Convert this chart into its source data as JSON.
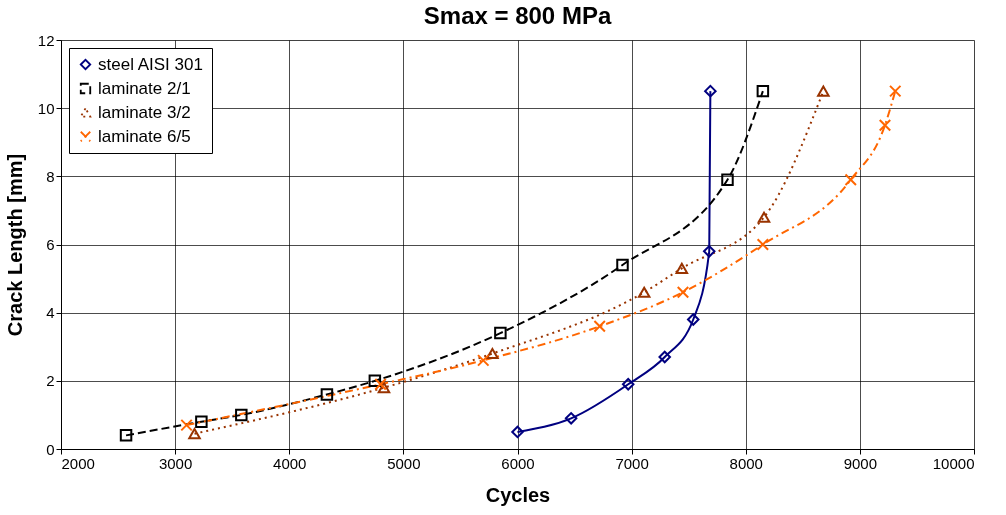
{
  "chart_data": {
    "type": "line",
    "title": "Smax = 800 MPa",
    "xlabel": "Cycles",
    "ylabel": "Crack Length [mm]",
    "xlim": [
      2000,
      10000
    ],
    "xticks": [
      2000,
      3000,
      4000,
      5000,
      6000,
      7000,
      8000,
      9000,
      10000
    ],
    "ylim": [
      0,
      12
    ],
    "yticks": [
      0,
      2,
      4,
      6,
      8,
      10,
      12
    ],
    "grid": true,
    "legend": "top left",
    "series": [
      {
        "name": "steel AISI 301",
        "color": "#000080",
        "marker": "diamond",
        "line_style": "solid",
        "x": [
          6000,
          6470,
          6970,
          7290,
          7540,
          7680,
          7690
        ],
        "values": [
          0.5,
          0.9,
          1.9,
          2.7,
          3.8,
          5.8,
          10.5
        ]
      },
      {
        "name": "laminate 2/1",
        "color": "#000000",
        "marker": "square",
        "line_style": "dashed",
        "x": [
          2570,
          3230,
          3580,
          4330,
          4750,
          5850,
          6920,
          7840,
          8150
        ],
        "values": [
          0.4,
          0.8,
          1.0,
          1.6,
          2.0,
          3.4,
          5.4,
          7.9,
          10.5
        ]
      },
      {
        "name": "laminate 3/2",
        "color": "#993300",
        "marker": "triangle",
        "line_style": "dotted",
        "x": [
          3170,
          4830,
          5780,
          7110,
          7440,
          8160,
          8680
        ],
        "values": [
          0.45,
          1.8,
          2.8,
          4.6,
          5.3,
          6.8,
          10.5
        ]
      },
      {
        "name": "laminate 6/5",
        "color": "#ff6600",
        "marker": "cross",
        "line_style": "dashdot",
        "x": [
          3100,
          4800,
          5700,
          6720,
          7450,
          8150,
          8920,
          9220,
          9310
        ],
        "values": [
          0.7,
          1.9,
          2.6,
          3.6,
          4.6,
          6.0,
          7.9,
          9.5,
          10.5
        ]
      }
    ]
  }
}
